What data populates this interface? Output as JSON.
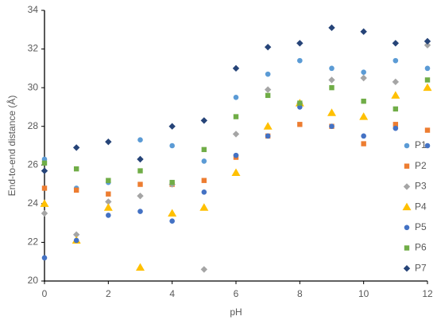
{
  "chart_data": {
    "type": "scatter",
    "x_label": "pH",
    "y_label": "End-to-end distance (Å)",
    "x": [
      0,
      1,
      2,
      3,
      4,
      5,
      6,
      7,
      8,
      9,
      10,
      11,
      12
    ],
    "xlim": [
      0,
      12
    ],
    "xticks": [
      0,
      2,
      4,
      6,
      8,
      10,
      12
    ],
    "ylim": [
      20,
      34
    ],
    "yticks": [
      20,
      22,
      24,
      26,
      28,
      30,
      32,
      34
    ],
    "grid": false,
    "legend": "right",
    "series": [
      {
        "name": "P1",
        "color": "#5b9bd5",
        "marker": "circle",
        "values": [
          26.3,
          24.8,
          25.1,
          27.3,
          27.0,
          26.2,
          29.5,
          30.7,
          31.4,
          31.0,
          30.8,
          31.4,
          31.0
        ]
      },
      {
        "name": "P2",
        "color": "#ed7d31",
        "marker": "square",
        "values": [
          24.8,
          24.7,
          24.5,
          25.0,
          25.0,
          25.2,
          26.4,
          27.5,
          28.1,
          28.0,
          27.1,
          28.1,
          27.8
        ]
      },
      {
        "name": "P3",
        "color": "#a5a5a5",
        "marker": "diamond",
        "values": [
          23.5,
          22.4,
          24.1,
          24.4,
          25.0,
          20.6,
          27.6,
          29.9,
          29.2,
          30.4,
          30.5,
          30.3,
          32.2
        ]
      },
      {
        "name": "P4",
        "color": "#ffc000",
        "marker": "triangle",
        "values": [
          24.0,
          22.1,
          23.8,
          20.7,
          23.5,
          23.8,
          25.6,
          28.0,
          29.2,
          28.7,
          28.5,
          29.6,
          30.0
        ]
      },
      {
        "name": "P5",
        "color": "#4472c4",
        "marker": "circle",
        "values": [
          21.2,
          22.1,
          23.4,
          23.6,
          23.1,
          24.6,
          26.5,
          27.5,
          29.0,
          28.0,
          27.5,
          27.9,
          27.0
        ]
      },
      {
        "name": "P6",
        "color": "#70ad47",
        "marker": "square",
        "values": [
          26.1,
          25.8,
          25.2,
          25.7,
          25.1,
          26.8,
          28.5,
          29.6,
          29.2,
          30.0,
          29.3,
          28.9,
          30.4
        ]
      },
      {
        "name": "P7",
        "color": "#264478",
        "marker": "diamond",
        "values": [
          25.7,
          26.9,
          27.2,
          26.3,
          28.0,
          28.3,
          31.0,
          32.1,
          32.3,
          33.1,
          32.9,
          32.3,
          32.4
        ]
      }
    ]
  }
}
